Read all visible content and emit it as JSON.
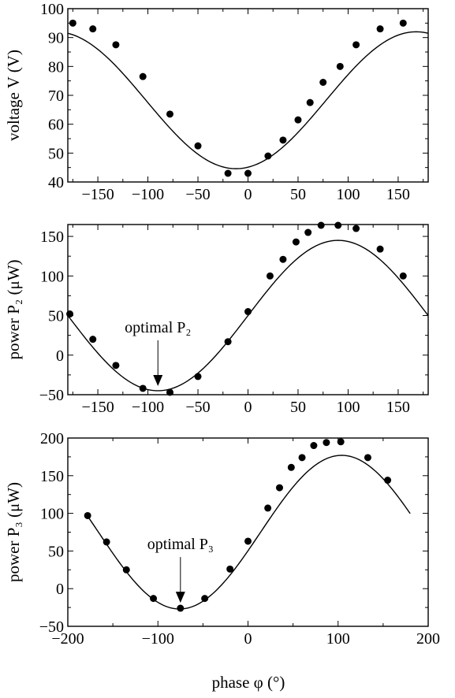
{
  "chart_data": [
    {
      "type": "scatter",
      "title": "",
      "xlabel": "",
      "ylabel": "voltage V (V)",
      "xlim": [
        -180,
        180
      ],
      "ylim": [
        40,
        100
      ],
      "xticks": [
        -150,
        -100,
        -50,
        0,
        50,
        100,
        150
      ],
      "yticks": [
        40,
        50,
        60,
        70,
        80,
        90,
        100
      ],
      "xtick_labels": [
        "−150",
        "−100",
        "−50",
        "0",
        "50",
        "100",
        "150"
      ],
      "ytick_labels": [
        "40",
        "50",
        "60",
        "70",
        "80",
        "90",
        "100"
      ],
      "series": [
        {
          "kind": "points",
          "x": [
            -175,
            -155,
            -132,
            -105,
            -78,
            -50,
            -20,
            0,
            20,
            35,
            50,
            62,
            75,
            92,
            108,
            132,
            155
          ],
          "y": [
            95,
            93,
            87.5,
            76.5,
            63.5,
            52.5,
            43,
            43,
            49,
            54.5,
            61.5,
            67.5,
            74.5,
            80,
            87.5,
            93,
            95
          ]
        },
        {
          "kind": "fit",
          "function": "cosine",
          "params": {
            "offset": 68.3,
            "amplitude": 23.7,
            "phase0": 168
          }
        }
      ]
    },
    {
      "type": "scatter",
      "title": "",
      "xlabel": "",
      "ylabel": "power P₂ (μW)",
      "xlim": [
        -180,
        180
      ],
      "ylim": [
        -50,
        165
      ],
      "xticks": [
        -150,
        -100,
        -50,
        0,
        50,
        100,
        150
      ],
      "yticks": [
        -50,
        0,
        50,
        100,
        150
      ],
      "xtick_labels": [
        "−150",
        "−100",
        "−50",
        "0",
        "50",
        "100",
        "150"
      ],
      "ytick_labels": [
        "−50",
        "0",
        "50",
        "100",
        "150"
      ],
      "annotation": {
        "text": "optimal P₂",
        "x": -90,
        "y": -45
      },
      "series": [
        {
          "kind": "points",
          "x": [
            -178,
            -155,
            -132,
            -105,
            -78,
            -50,
            -20,
            0,
            22,
            35,
            48,
            60,
            73,
            90,
            108,
            132,
            155
          ],
          "y": [
            52,
            20,
            -13,
            -42,
            -47,
            -27,
            17,
            55,
            100,
            121,
            143,
            155,
            167,
            165,
            160,
            134,
            100
          ],
          "clip_ymax": 165
        },
        {
          "kind": "fit",
          "function": "sine",
          "params": {
            "offset": 50,
            "amplitude": 95,
            "phase0": 0
          }
        }
      ]
    },
    {
      "type": "scatter",
      "title": "",
      "xlabel": "phase φ (°)",
      "ylabel": "power P₃ (μW)",
      "xlim": [
        -200,
        200
      ],
      "ylim": [
        -50,
        200
      ],
      "xticks": [
        -200,
        -100,
        0,
        100,
        200
      ],
      "yticks": [
        -50,
        0,
        50,
        100,
        150,
        200
      ],
      "xtick_labels": [
        "−200",
        "−100",
        "0",
        "100",
        "200"
      ],
      "ytick_labels": [
        "−50",
        "0",
        "50",
        "100",
        "150",
        "200"
      ],
      "annotation": {
        "text": "optimal P₃",
        "x": -75,
        "y": -25
      },
      "series": [
        {
          "kind": "points",
          "x": [
            -178,
            -157,
            -135,
            -105,
            -75,
            -48,
            -20,
            0,
            22,
            35,
            48,
            60,
            73,
            87,
            103,
            133,
            155
          ],
          "y": [
            97,
            62,
            25,
            -13,
            -26,
            -13,
            26,
            63,
            107,
            134,
            161,
            174,
            190,
            194,
            195,
            174,
            144
          ],
          "clip_ymax": 200
        },
        {
          "kind": "fit",
          "function": "sine",
          "params": {
            "offset": 75,
            "amplitude": 102,
            "phase0": 14
          }
        }
      ]
    }
  ]
}
